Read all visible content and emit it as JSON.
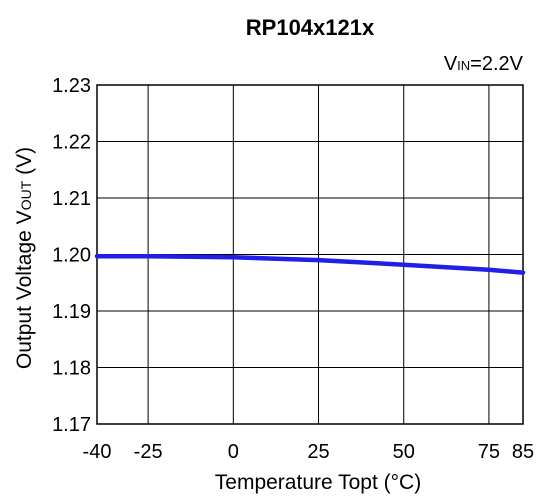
{
  "chart_data": {
    "type": "line",
    "title": "RP104x121x",
    "condition": {
      "main": "V",
      "sub": "IN",
      "rest": "=2.2V"
    },
    "xlabel": "Temperature Topt (°C)",
    "ylabel": {
      "main": "Output Voltage V",
      "sub": "OUT",
      "rest": " (V)"
    },
    "xlim": [
      -40,
      85
    ],
    "ylim": [
      1.17,
      1.23
    ],
    "x_ticks": [
      -40,
      -25,
      0,
      25,
      50,
      75,
      85
    ],
    "x_tick_labels": [
      "-40",
      "-25",
      "0",
      "25",
      "50",
      "75",
      "85"
    ],
    "y_ticks": [
      1.17,
      1.18,
      1.19,
      1.2,
      1.21,
      1.22,
      1.23
    ],
    "y_tick_labels": [
      "1.17",
      "1.18",
      "1.19",
      "1.20",
      "1.21",
      "1.22",
      "1.23"
    ],
    "grid": true,
    "series": [
      {
        "color": "#1f1fe6",
        "x": [
          -40,
          -25,
          0,
          25,
          50,
          75,
          85
        ],
        "y": [
          1.1997,
          1.1997,
          1.1995,
          1.199,
          1.1982,
          1.1973,
          1.1968
        ]
      }
    ]
  }
}
